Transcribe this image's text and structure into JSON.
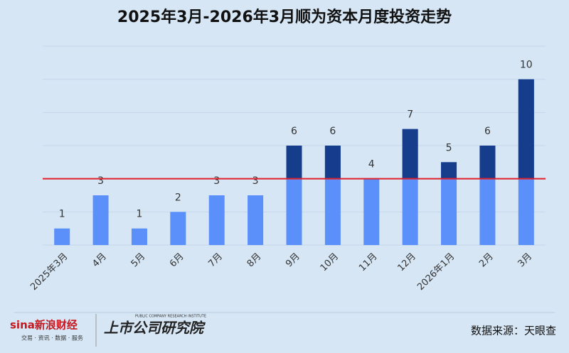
{
  "chart_data": {
    "type": "bar",
    "title": "2025年3月-2026年3月顺为资本月度投资走势",
    "categories": [
      "2025年3月",
      "4月",
      "5月",
      "6月",
      "7月",
      "8月",
      "9月",
      "10月",
      "11月",
      "12月",
      "2026年1月",
      "2月",
      "3月"
    ],
    "values": [
      1,
      3,
      1,
      2,
      3,
      3,
      6,
      6,
      4,
      7,
      5,
      6,
      10
    ],
    "color": "#5b8ff9",
    "above_color": "#163d8c",
    "reference_line": {
      "value": 4,
      "color": "#e0202a"
    },
    "ylim": [
      0,
      12
    ],
    "gridlines": [
      0,
      2,
      4,
      6,
      8,
      10,
      12
    ],
    "grid": true
  },
  "footer": {
    "logo_main": "sina新浪财经",
    "logo_sub": "交易 · 资讯 · 数据 · 服务",
    "institute_en": "PUBLIC COMPANY RESEARCH INSTITUTE",
    "institute": "上市公司研究院",
    "source": "数据来源：天眼查"
  }
}
